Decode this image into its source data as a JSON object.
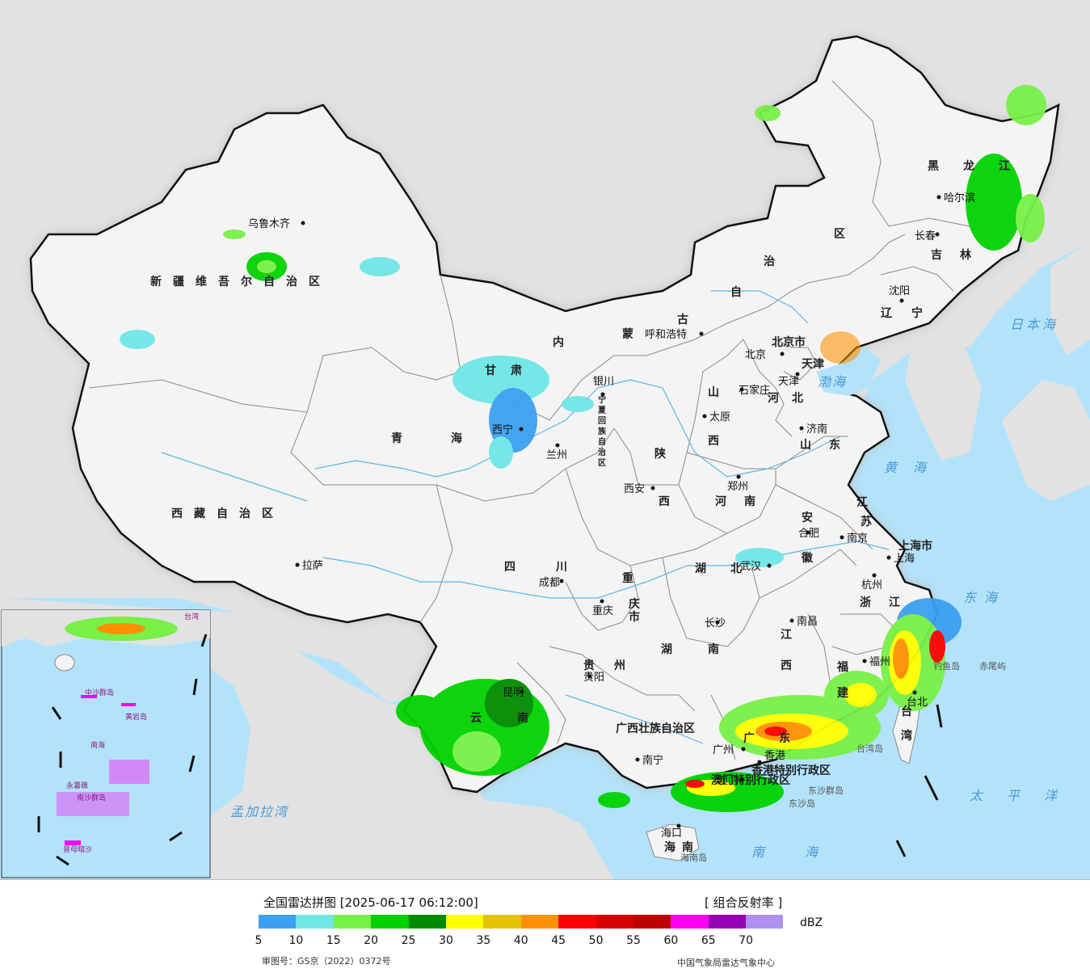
{
  "legend": {
    "title": "全国雷达拼图 [2025-06-17 06:12:00]",
    "product": "[ 组合反射率 ]",
    "unit": "dBZ",
    "ticks": [
      "5",
      "10",
      "15",
      "20",
      "25",
      "30",
      "35",
      "40",
      "45",
      "50",
      "55",
      "60",
      "65",
      "70"
    ],
    "colors": [
      "#3ca0f0",
      "#6ee6e6",
      "#78f046",
      "#00d200",
      "#008c00",
      "#ffff00",
      "#e6c300",
      "#ff9100",
      "#ff0000",
      "#d70000",
      "#c00000",
      "#ff00f0",
      "#9600b4",
      "#ad90f0"
    ],
    "approval": "审图号：GS京（2022）0372号",
    "org": "中国气象局雷达气象中心"
  },
  "map": {
    "colors": {
      "sea": "#b3e3fa",
      "land": "#f4f4f4",
      "foreign": "#e2e2e2",
      "border": "#111111",
      "province": "#8a8a8a",
      "river": "#5cb6e8"
    },
    "provinces": [
      {
        "name": "新疆维吾尔自治区"
      },
      {
        "name": "西藏自治区"
      },
      {
        "name": "青海"
      },
      {
        "name": "甘肃"
      },
      {
        "name": "内蒙古自治区"
      },
      {
        "name": "黑龙江"
      },
      {
        "name": "吉林"
      },
      {
        "name": "辽宁"
      },
      {
        "name": "河北"
      },
      {
        "name": "山西"
      },
      {
        "name": "陕西"
      },
      {
        "name": "河南"
      },
      {
        "name": "山东"
      },
      {
        "name": "江苏"
      },
      {
        "name": "安徽"
      },
      {
        "name": "湖北"
      },
      {
        "name": "四川"
      },
      {
        "name": "重庆市"
      },
      {
        "name": "湖南"
      },
      {
        "name": "江西"
      },
      {
        "name": "浙江"
      },
      {
        "name": "福建"
      },
      {
        "name": "贵州"
      },
      {
        "name": "云南"
      },
      {
        "name": "广西壮族自治区"
      },
      {
        "name": "广东"
      },
      {
        "name": "海南"
      },
      {
        "name": "台湾"
      },
      {
        "name": "宁夏回族自治区"
      },
      {
        "name": "上海市"
      },
      {
        "name": "天津"
      },
      {
        "name": "北京市"
      },
      {
        "name": "香港特别行政区"
      },
      {
        "name": "澳门特别行政区"
      }
    ],
    "cities": [
      {
        "name": "乌鲁木齐"
      },
      {
        "name": "拉萨"
      },
      {
        "name": "西宁"
      },
      {
        "name": "兰州"
      },
      {
        "name": "银川"
      },
      {
        "name": "呼和浩特"
      },
      {
        "name": "北京"
      },
      {
        "name": "天津"
      },
      {
        "name": "石家庄"
      },
      {
        "name": "太原"
      },
      {
        "name": "济南"
      },
      {
        "name": "郑州"
      },
      {
        "name": "西安"
      },
      {
        "name": "成都"
      },
      {
        "name": "重庆"
      },
      {
        "name": "武汉"
      },
      {
        "name": "合肥"
      },
      {
        "name": "南京"
      },
      {
        "name": "上海"
      },
      {
        "name": "杭州"
      },
      {
        "name": "南昌"
      },
      {
        "name": "长沙"
      },
      {
        "name": "福州"
      },
      {
        "name": "台北"
      },
      {
        "name": "贵阳"
      },
      {
        "name": "昆明"
      },
      {
        "name": "南宁"
      },
      {
        "name": "广州"
      },
      {
        "name": "海口"
      },
      {
        "name": "沈阳"
      },
      {
        "name": "长春"
      },
      {
        "name": "哈尔滨"
      },
      {
        "name": "香港"
      },
      {
        "name": "澳门"
      }
    ],
    "seas": [
      {
        "name": "日本海"
      },
      {
        "name": "渤海"
      },
      {
        "name": "黄海"
      },
      {
        "name": "东海"
      },
      {
        "name": "太平洋"
      },
      {
        "name": "南海"
      },
      {
        "name": "孟加拉湾"
      }
    ],
    "islands": [
      {
        "name": "钓鱼岛"
      },
      {
        "name": "赤尾屿"
      },
      {
        "name": "台湾岛"
      },
      {
        "name": "东沙群岛"
      },
      {
        "name": "东沙岛"
      },
      {
        "name": "海南岛"
      }
    ],
    "inset": {
      "labels": [
        {
          "name": "中沙群岛"
        },
        {
          "name": "黄岩岛"
        },
        {
          "name": "永暑礁"
        },
        {
          "name": "南沙群岛"
        },
        {
          "name": "曾母暗沙"
        },
        {
          "name": "南海"
        },
        {
          "name": "台湾"
        }
      ]
    }
  }
}
